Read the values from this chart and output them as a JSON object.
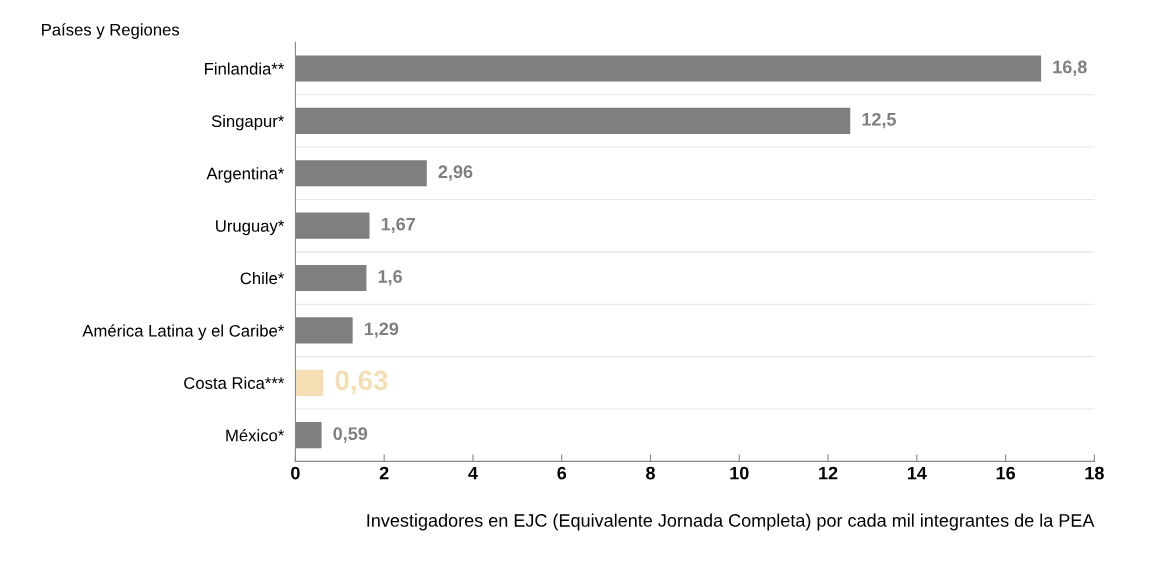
{
  "chart_data": {
    "type": "bar",
    "orientation": "horizontal",
    "ylabel": "Países y Regiones",
    "xlabel": "Investigadores en EJC (Equivalente Jornada Completa) por cada mil integrantes de la PEA",
    "categories": [
      "Finlandia**",
      "Singapur*",
      "Argentina*",
      "Uruguay*",
      "Chile*",
      "América Latina y el Caribe*",
      "Costa Rica***",
      "México*"
    ],
    "values": [
      16.8,
      12.5,
      2.96,
      1.67,
      1.6,
      1.29,
      0.63,
      0.59
    ],
    "colors": [
      "#7f7f7f",
      "#7f7f7f",
      "#7f7f7f",
      "#7f7f7f",
      "#7f7f7f",
      "#7f7f7f",
      "#f5deb3",
      "#7f7f7f"
    ],
    "value_labels": [
      "16,8",
      "12,5",
      "2,96",
      "1,67",
      "1,6",
      "1,29",
      "0,63",
      "0,59"
    ],
    "xlim": [
      0,
      18
    ],
    "xticks": [
      0,
      2,
      4,
      6,
      8,
      10,
      12,
      14,
      16,
      18
    ],
    "grid": "y"
  }
}
